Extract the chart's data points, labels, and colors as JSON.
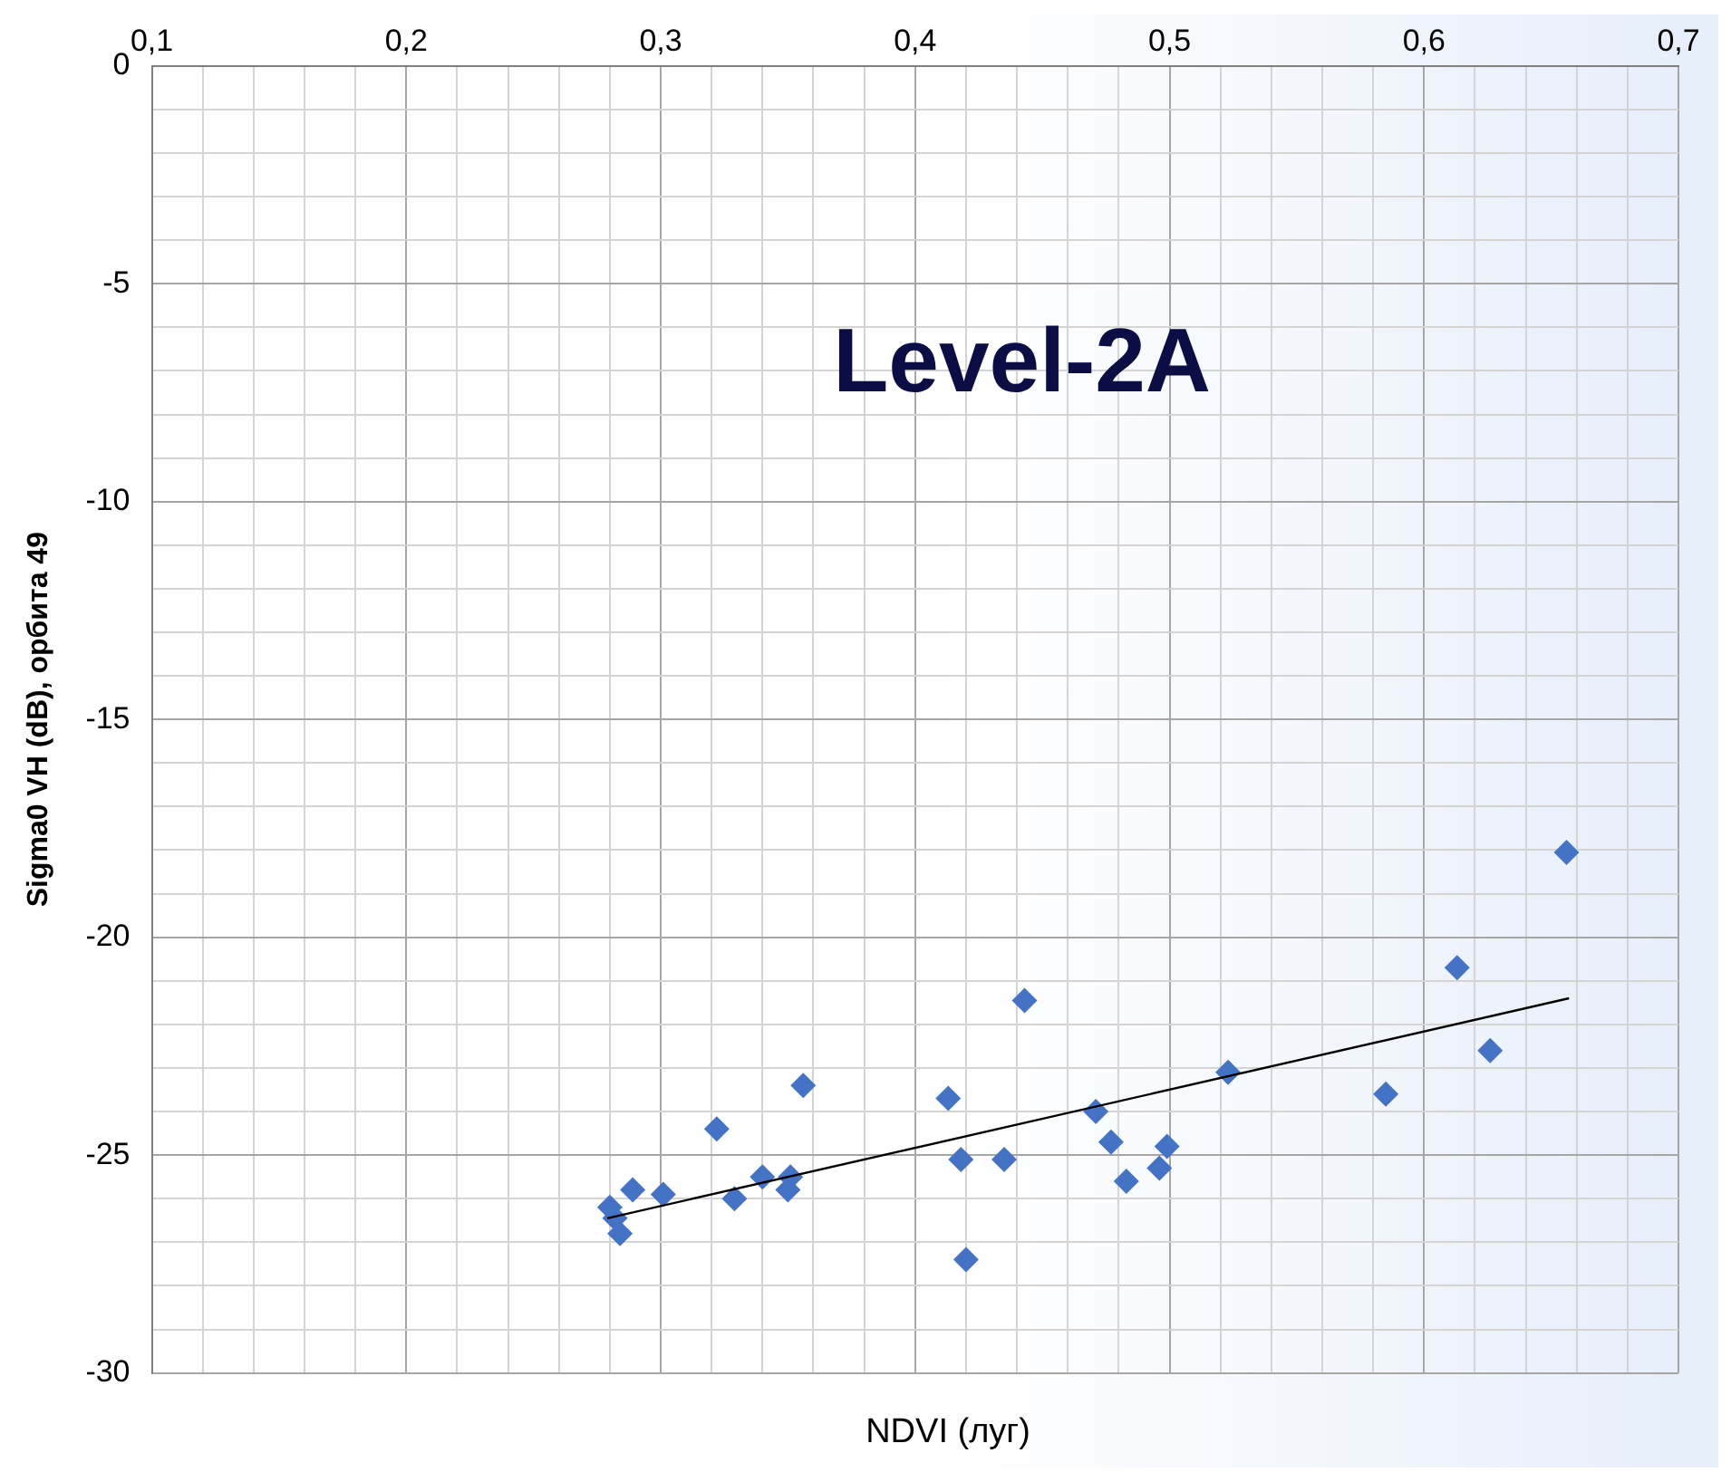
{
  "chart_data": {
    "type": "scatter",
    "title": "Level-2A",
    "xlabel": "NDVI (луг)",
    "ylabel": "Sigma0 VH (dB), орбита 49",
    "xlim": [
      0.1,
      0.7
    ],
    "ylim": [
      -30,
      0
    ],
    "xticks": [
      {
        "value": 0.1,
        "label": "0,1"
      },
      {
        "value": 0.12,
        "label": null
      },
      {
        "value": 0.14,
        "label": null
      },
      {
        "value": 0.16,
        "label": null
      },
      {
        "value": 0.18,
        "label": null
      },
      {
        "value": 0.2,
        "label": "0,2"
      },
      {
        "value": 0.22,
        "label": null
      },
      {
        "value": 0.24,
        "label": null
      },
      {
        "value": 0.26,
        "label": null
      },
      {
        "value": 0.28,
        "label": null
      },
      {
        "value": 0.3,
        "label": "0,3"
      },
      {
        "value": 0.32,
        "label": null
      },
      {
        "value": 0.34,
        "label": null
      },
      {
        "value": 0.36,
        "label": null
      },
      {
        "value": 0.38,
        "label": null
      },
      {
        "value": 0.4,
        "label": "0,4"
      },
      {
        "value": 0.42,
        "label": null
      },
      {
        "value": 0.44,
        "label": null
      },
      {
        "value": 0.46,
        "label": null
      },
      {
        "value": 0.48,
        "label": null
      },
      {
        "value": 0.5,
        "label": "0,5"
      },
      {
        "value": 0.52,
        "label": null
      },
      {
        "value": 0.54,
        "label": null
      },
      {
        "value": 0.56,
        "label": null
      },
      {
        "value": 0.58,
        "label": null
      },
      {
        "value": 0.6,
        "label": "0,6"
      },
      {
        "value": 0.62,
        "label": null
      },
      {
        "value": 0.64,
        "label": null
      },
      {
        "value": 0.66,
        "label": null
      },
      {
        "value": 0.68,
        "label": null
      },
      {
        "value": 0.7,
        "label": "0,7"
      }
    ],
    "yticks": [
      -30,
      {
        "value": -29,
        "label": null
      },
      {
        "value": -28,
        "label": null
      },
      {
        "value": -27,
        "label": null
      },
      {
        "value": -26,
        "label": null
      },
      -25,
      {
        "value": -24,
        "label": null
      },
      {
        "value": -23,
        "label": null
      },
      {
        "value": -22,
        "label": null
      },
      {
        "value": -21,
        "label": null
      },
      -20,
      {
        "value": -19,
        "label": null
      },
      {
        "value": -18,
        "label": null
      },
      {
        "value": -17,
        "label": null
      },
      {
        "value": -16,
        "label": null
      },
      -15,
      {
        "value": -14,
        "label": null
      },
      {
        "value": -13,
        "label": null
      },
      {
        "value": -12,
        "label": null
      },
      {
        "value": -11,
        "label": null
      },
      -10,
      {
        "value": -9,
        "label": null
      },
      {
        "value": -8,
        "label": null
      },
      {
        "value": -7,
        "label": null
      },
      {
        "value": -6,
        "label": null
      },
      -5,
      {
        "value": -4,
        "label": null
      },
      {
        "value": -3,
        "label": null
      },
      {
        "value": -2,
        "label": null
      },
      {
        "value": -1,
        "label": null
      },
      0
    ],
    "grid": true,
    "marker": "diamond",
    "series": [
      {
        "color": "#4472c4",
        "x": [
          0.28,
          0.282,
          0.284,
          0.289,
          0.301,
          0.322,
          0.329,
          0.34,
          0.35,
          0.351,
          0.356,
          0.413,
          0.418,
          0.42,
          0.435,
          0.443,
          0.471,
          0.477,
          0.483,
          0.496,
          0.499,
          0.523,
          0.585,
          0.613,
          0.626,
          0.656
        ],
        "values": [
          -26.2,
          -26.45,
          -26.8,
          -25.8,
          -25.9,
          -24.4,
          -26.0,
          -25.5,
          -25.8,
          -25.5,
          -23.4,
          -23.7,
          -25.1,
          -27.4,
          -25.1,
          -21.45,
          -24.0,
          -24.7,
          -25.6,
          -25.3,
          -24.8,
          -23.1,
          -23.6,
          -20.7,
          -22.6,
          -18.05
        ]
      },
      {
        "type": "line",
        "color": "#000000",
        "marker": "none",
        "x": [
          0.279,
          0.657
        ],
        "values": [
          -26.45,
          -21.4
        ]
      }
    ]
  }
}
